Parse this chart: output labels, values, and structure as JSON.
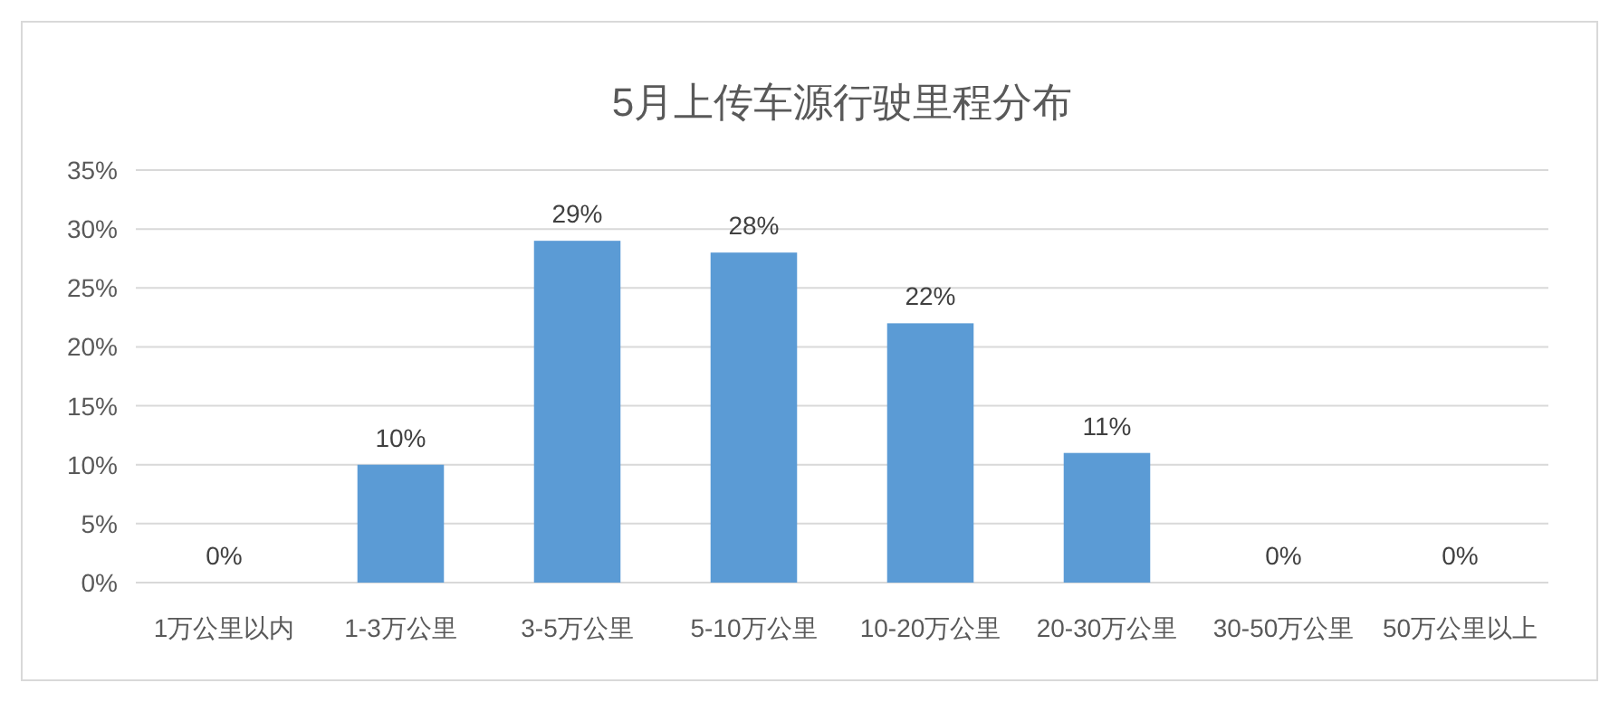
{
  "chart_data": {
    "type": "bar",
    "title": "5月上传车源行驶里程分布",
    "categories": [
      "1万公里以内",
      "1-3万公里",
      "3-5万公里",
      "5-10万公里",
      "10-20万公里",
      "20-30万公里",
      "30-50万公里",
      "50万公里以上"
    ],
    "values": [
      0,
      10,
      29,
      28,
      22,
      11,
      0,
      0
    ],
    "value_labels": [
      "0%",
      "10%",
      "29%",
      "28%",
      "22%",
      "11%",
      "0%",
      "0%"
    ],
    "color": "#5b9bd5",
    "ylim": [
      0,
      35
    ],
    "yticks": [
      {
        "value": 0,
        "label": "0%"
      },
      {
        "value": 5,
        "label": "5%"
      },
      {
        "value": 10,
        "label": "10%"
      },
      {
        "value": 15,
        "label": "15%"
      },
      {
        "value": 20,
        "label": "20%"
      },
      {
        "value": 25,
        "label": "25%"
      },
      {
        "value": 30,
        "label": "30%"
      },
      {
        "value": 35,
        "label": "35%"
      }
    ],
    "grid": "y"
  }
}
